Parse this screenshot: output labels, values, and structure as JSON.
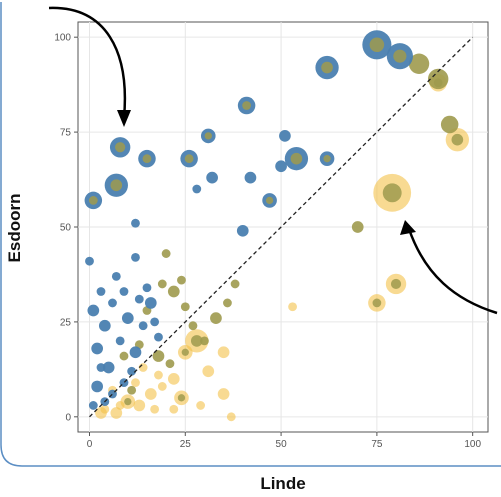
{
  "chart_data": {
    "type": "scatter",
    "title": "",
    "xlabel": "Linde",
    "ylabel": "Esdoorn",
    "xlim": [
      -3,
      104
    ],
    "ylim": [
      -4,
      104
    ],
    "x_ticks": [
      0,
      25,
      50,
      75,
      100
    ],
    "y_ticks": [
      0,
      25,
      50,
      75,
      100
    ],
    "x_tick_labels": [
      "0",
      "25",
      "50",
      "75",
      "100"
    ],
    "y_tick_labels": [
      "0",
      "25",
      "50",
      "75",
      "100"
    ],
    "grid": true,
    "legend": "none",
    "reference_line": {
      "from": [
        0,
        0
      ],
      "to": [
        100,
        100
      ],
      "style": "dashed"
    },
    "colors": {
      "blue": "#4a7fb0",
      "gold": "#f4c24a",
      "olive": "#9f9a4e",
      "frame": "#5b8ec4"
    },
    "series": [
      {
        "color": "blue",
        "points": [
          {
            "x": 1,
            "y": 57,
            "size": 5
          },
          {
            "x": 7,
            "y": 61,
            "size": 7
          },
          {
            "x": 8,
            "y": 71,
            "size": 6
          },
          {
            "x": 15,
            "y": 68,
            "size": 5
          },
          {
            "x": 12,
            "y": 51,
            "size": 2
          },
          {
            "x": 0,
            "y": 41,
            "size": 2
          },
          {
            "x": 26,
            "y": 68,
            "size": 5
          },
          {
            "x": 31,
            "y": 74,
            "size": 4
          },
          {
            "x": 28,
            "y": 60,
            "size": 2
          },
          {
            "x": 32,
            "y": 63,
            "size": 3
          },
          {
            "x": 41,
            "y": 82,
            "size": 5
          },
          {
            "x": 42,
            "y": 63,
            "size": 3
          },
          {
            "x": 40,
            "y": 49,
            "size": 3
          },
          {
            "x": 47,
            "y": 57,
            "size": 4
          },
          {
            "x": 50,
            "y": 66,
            "size": 3
          },
          {
            "x": 51,
            "y": 74,
            "size": 3
          },
          {
            "x": 54,
            "y": 68,
            "size": 7
          },
          {
            "x": 62,
            "y": 68,
            "size": 4
          },
          {
            "x": 62,
            "y": 92,
            "size": 7
          },
          {
            "x": 75,
            "y": 98,
            "size": 9
          },
          {
            "x": 81,
            "y": 95,
            "size": 8
          },
          {
            "x": 1,
            "y": 28,
            "size": 3
          },
          {
            "x": 3,
            "y": 33,
            "size": 2
          },
          {
            "x": 4,
            "y": 24,
            "size": 3
          },
          {
            "x": 6,
            "y": 30,
            "size": 2
          },
          {
            "x": 2,
            "y": 18,
            "size": 3
          },
          {
            "x": 8,
            "y": 20,
            "size": 2
          },
          {
            "x": 10,
            "y": 26,
            "size": 3
          },
          {
            "x": 5,
            "y": 13,
            "size": 3
          },
          {
            "x": 9,
            "y": 9,
            "size": 2
          },
          {
            "x": 2,
            "y": 8,
            "size": 3
          },
          {
            "x": 4,
            "y": 4,
            "size": 2
          },
          {
            "x": 12,
            "y": 17,
            "size": 3
          },
          {
            "x": 14,
            "y": 24,
            "size": 2
          },
          {
            "x": 16,
            "y": 30,
            "size": 3
          },
          {
            "x": 7,
            "y": 37,
            "size": 2
          },
          {
            "x": 12,
            "y": 42,
            "size": 2
          },
          {
            "x": 3,
            "y": 13,
            "size": 2
          },
          {
            "x": 6,
            "y": 6,
            "size": 2
          },
          {
            "x": 11,
            "y": 12,
            "size": 2
          },
          {
            "x": 1,
            "y": 3,
            "size": 2
          },
          {
            "x": 18,
            "y": 21,
            "size": 2
          },
          {
            "x": 9,
            "y": 33,
            "size": 2
          },
          {
            "x": 13,
            "y": 31,
            "size": 2
          },
          {
            "x": 15,
            "y": 34,
            "size": 2
          },
          {
            "x": 17,
            "y": 25,
            "size": 2
          }
        ]
      },
      {
        "color": "olive",
        "points": [
          {
            "x": 20,
            "y": 43,
            "size": 2
          },
          {
            "x": 24,
            "y": 36,
            "size": 2
          },
          {
            "x": 33,
            "y": 26,
            "size": 3
          },
          {
            "x": 36,
            "y": 30,
            "size": 2
          },
          {
            "x": 38,
            "y": 35,
            "size": 2
          },
          {
            "x": 70,
            "y": 50,
            "size": 3
          },
          {
            "x": 91,
            "y": 89,
            "size": 6
          },
          {
            "x": 94,
            "y": 77,
            "size": 5
          },
          {
            "x": 86,
            "y": 93,
            "size": 6
          },
          {
            "x": 22,
            "y": 33,
            "size": 3
          },
          {
            "x": 19,
            "y": 35,
            "size": 2
          },
          {
            "x": 15,
            "y": 28,
            "size": 2
          },
          {
            "x": 18,
            "y": 16,
            "size": 3
          },
          {
            "x": 13,
            "y": 19,
            "size": 2
          },
          {
            "x": 21,
            "y": 14,
            "size": 2
          },
          {
            "x": 27,
            "y": 24,
            "size": 2
          },
          {
            "x": 30,
            "y": 20,
            "size": 2
          },
          {
            "x": 9,
            "y": 16,
            "size": 2
          },
          {
            "x": 25,
            "y": 29,
            "size": 2
          },
          {
            "x": 11,
            "y": 7,
            "size": 2
          }
        ]
      },
      {
        "color": "gold",
        "points": [
          {
            "x": 79,
            "y": 59,
            "size": 12
          },
          {
            "x": 80,
            "y": 35,
            "size": 6
          },
          {
            "x": 75,
            "y": 30,
            "size": 5
          },
          {
            "x": 96,
            "y": 73,
            "size": 7
          },
          {
            "x": 91,
            "y": 88,
            "size": 5
          },
          {
            "x": 53,
            "y": 29,
            "size": 2
          },
          {
            "x": 28,
            "y": 20,
            "size": 7
          },
          {
            "x": 25,
            "y": 17,
            "size": 4
          },
          {
            "x": 31,
            "y": 12,
            "size": 3
          },
          {
            "x": 35,
            "y": 17,
            "size": 3
          },
          {
            "x": 22,
            "y": 10,
            "size": 3
          },
          {
            "x": 24,
            "y": 5,
            "size": 4
          },
          {
            "x": 19,
            "y": 8,
            "size": 2
          },
          {
            "x": 16,
            "y": 6,
            "size": 3
          },
          {
            "x": 13,
            "y": 3,
            "size": 3
          },
          {
            "x": 10,
            "y": 4,
            "size": 4
          },
          {
            "x": 7,
            "y": 1,
            "size": 3
          },
          {
            "x": 4,
            "y": 2,
            "size": 2
          },
          {
            "x": 3,
            "y": 1,
            "size": 3
          },
          {
            "x": 35,
            "y": 6,
            "size": 3
          },
          {
            "x": 37,
            "y": 0,
            "size": 2
          },
          {
            "x": 29,
            "y": 3,
            "size": 2
          },
          {
            "x": 14,
            "y": 13,
            "size": 2
          },
          {
            "x": 18,
            "y": 11,
            "size": 2
          },
          {
            "x": 12,
            "y": 9,
            "size": 2
          },
          {
            "x": 22,
            "y": 2,
            "size": 2
          },
          {
            "x": 6,
            "y": 7,
            "size": 2
          },
          {
            "x": 17,
            "y": 2,
            "size": 2
          },
          {
            "x": 8,
            "y": 3,
            "size": 2
          }
        ]
      }
    ]
  }
}
